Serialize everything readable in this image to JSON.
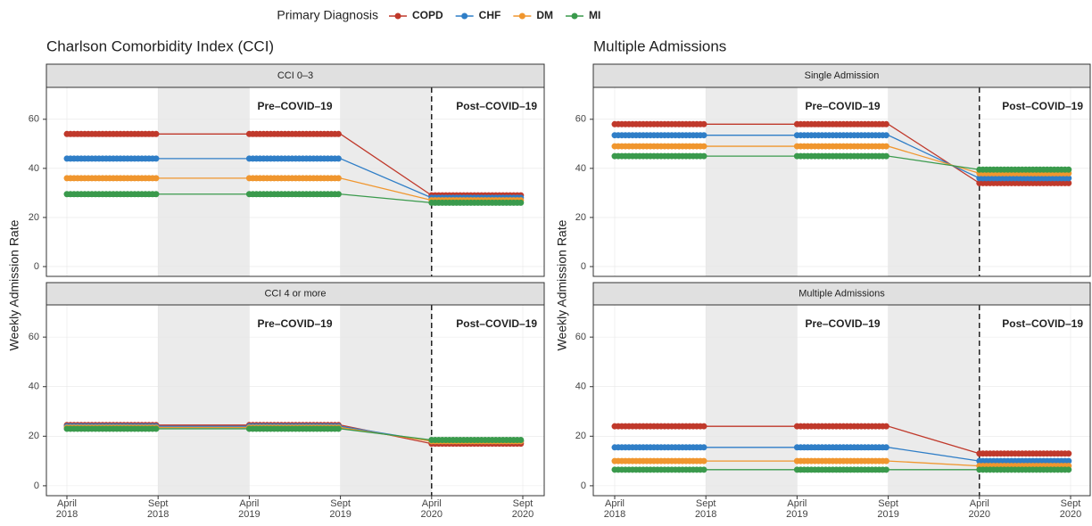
{
  "legend": {
    "title": "Primary Diagnosis",
    "names": [
      "COPD",
      "CHF",
      "DM",
      "MI"
    ],
    "colors": [
      "#c0392b",
      "#2f7ec7",
      "#f0962e",
      "#3a9a4c"
    ]
  },
  "y_label": "Weekly Admission Rate",
  "chart_data": [
    {
      "type": "line",
      "title": "Charlson Comorbidity Index (CCI)",
      "categories": [
        "April 2018",
        "Sept 2018",
        "April 2019",
        "Sept 2019",
        "April 2020",
        "Sept 2020"
      ],
      "ylim": [
        -4,
        73
      ],
      "yticks": [
        0,
        20,
        40,
        60
      ],
      "annotations": [
        "Pre–COVID–19",
        "Post–COVID–19"
      ],
      "panels": [
        {
          "title": "CCI 0–3",
          "series": [
            {
              "values": [
                54,
                54,
                54,
                54,
                29,
                29
              ]
            },
            {
              "values": [
                44,
                44,
                44,
                44,
                28,
                28
              ]
            },
            {
              "values": [
                36,
                36,
                36,
                36,
                27,
                27
              ]
            },
            {
              "values": [
                29.5,
                29.5,
                29.5,
                29.5,
                26,
                26
              ]
            }
          ]
        },
        {
          "title": "CCI 4 or more",
          "series": [
            {
              "values": [
                24.5,
                24.5,
                24.5,
                24.5,
                17,
                17
              ]
            },
            {
              "values": [
                24,
                24,
                24,
                24,
                18,
                18
              ]
            },
            {
              "values": [
                23.5,
                23.5,
                23.5,
                23.5,
                18,
                18
              ]
            },
            {
              "values": [
                23,
                23,
                23,
                23,
                18.5,
                18.5
              ]
            }
          ]
        }
      ]
    },
    {
      "type": "line",
      "title": "Multiple Admissions",
      "categories": [
        "April 2018",
        "Sept 2018",
        "April 2019",
        "Sept 2019",
        "April 2020",
        "Sept 2020"
      ],
      "ylim": [
        -4,
        73
      ],
      "yticks": [
        0,
        20,
        40,
        60
      ],
      "annotations": [
        "Pre–COVID–19",
        "Post–COVID–19"
      ],
      "panels": [
        {
          "title": "Single Admission",
          "series": [
            {
              "values": [
                58,
                58,
                58,
                58,
                34,
                34
              ]
            },
            {
              "values": [
                53.5,
                53.5,
                53.5,
                53.5,
                36,
                36
              ]
            },
            {
              "values": [
                49,
                49,
                49,
                49,
                38,
                38
              ]
            },
            {
              "values": [
                45,
                45,
                45,
                45,
                39.5,
                39.5
              ]
            }
          ]
        },
        {
          "title": "Multiple Admissions",
          "series": [
            {
              "values": [
                24,
                24,
                24,
                24,
                13,
                13
              ]
            },
            {
              "values": [
                15.5,
                15.5,
                15.5,
                15.5,
                10,
                10
              ]
            },
            {
              "values": [
                10,
                10,
                10,
                10,
                8,
                8
              ]
            },
            {
              "values": [
                6.5,
                6.5,
                6.5,
                6.5,
                6.5,
                6.5
              ]
            }
          ]
        }
      ]
    }
  ]
}
